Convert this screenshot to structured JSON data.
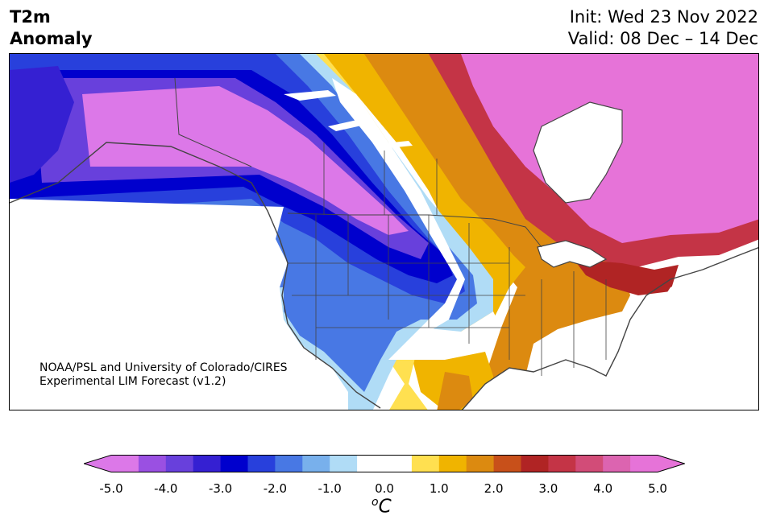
{
  "title": {
    "variable": "T2m",
    "kind": "Anomaly",
    "init": "Init: Wed 23 Nov 2022",
    "valid": "Valid: 08 Dec – 14 Dec"
  },
  "credit": {
    "line1": "NOAA/PSL and University of Colorado/CIRES",
    "line2": "Experimental LIM Forecast (v1.2)"
  },
  "colorbar": {
    "unit_super": "o",
    "unit": "C",
    "ticks": [
      "-5.0",
      "-4.0",
      "-3.0",
      "-2.0",
      "-1.0",
      "0.0",
      "1.0",
      "2.0",
      "3.0",
      "4.0",
      "5.0"
    ],
    "colors": [
      "#dc78e8",
      "#9a50e2",
      "#6840dc",
      "#3520d2",
      "#0000cd",
      "#2840dc",
      "#4878e4",
      "#78b0ec",
      "#b0dcf6",
      "#ffffff",
      "#ffffff",
      "#ffe050",
      "#f0b400",
      "#dc8a10",
      "#c8501a",
      "#b02424",
      "#c43446",
      "#d24c78",
      "#dc64b0",
      "#e673d8"
    ]
  },
  "colors": {
    "deep_warm": "#e673d8",
    "deep_cold": "#dc78e8",
    "border": "#444444"
  }
}
